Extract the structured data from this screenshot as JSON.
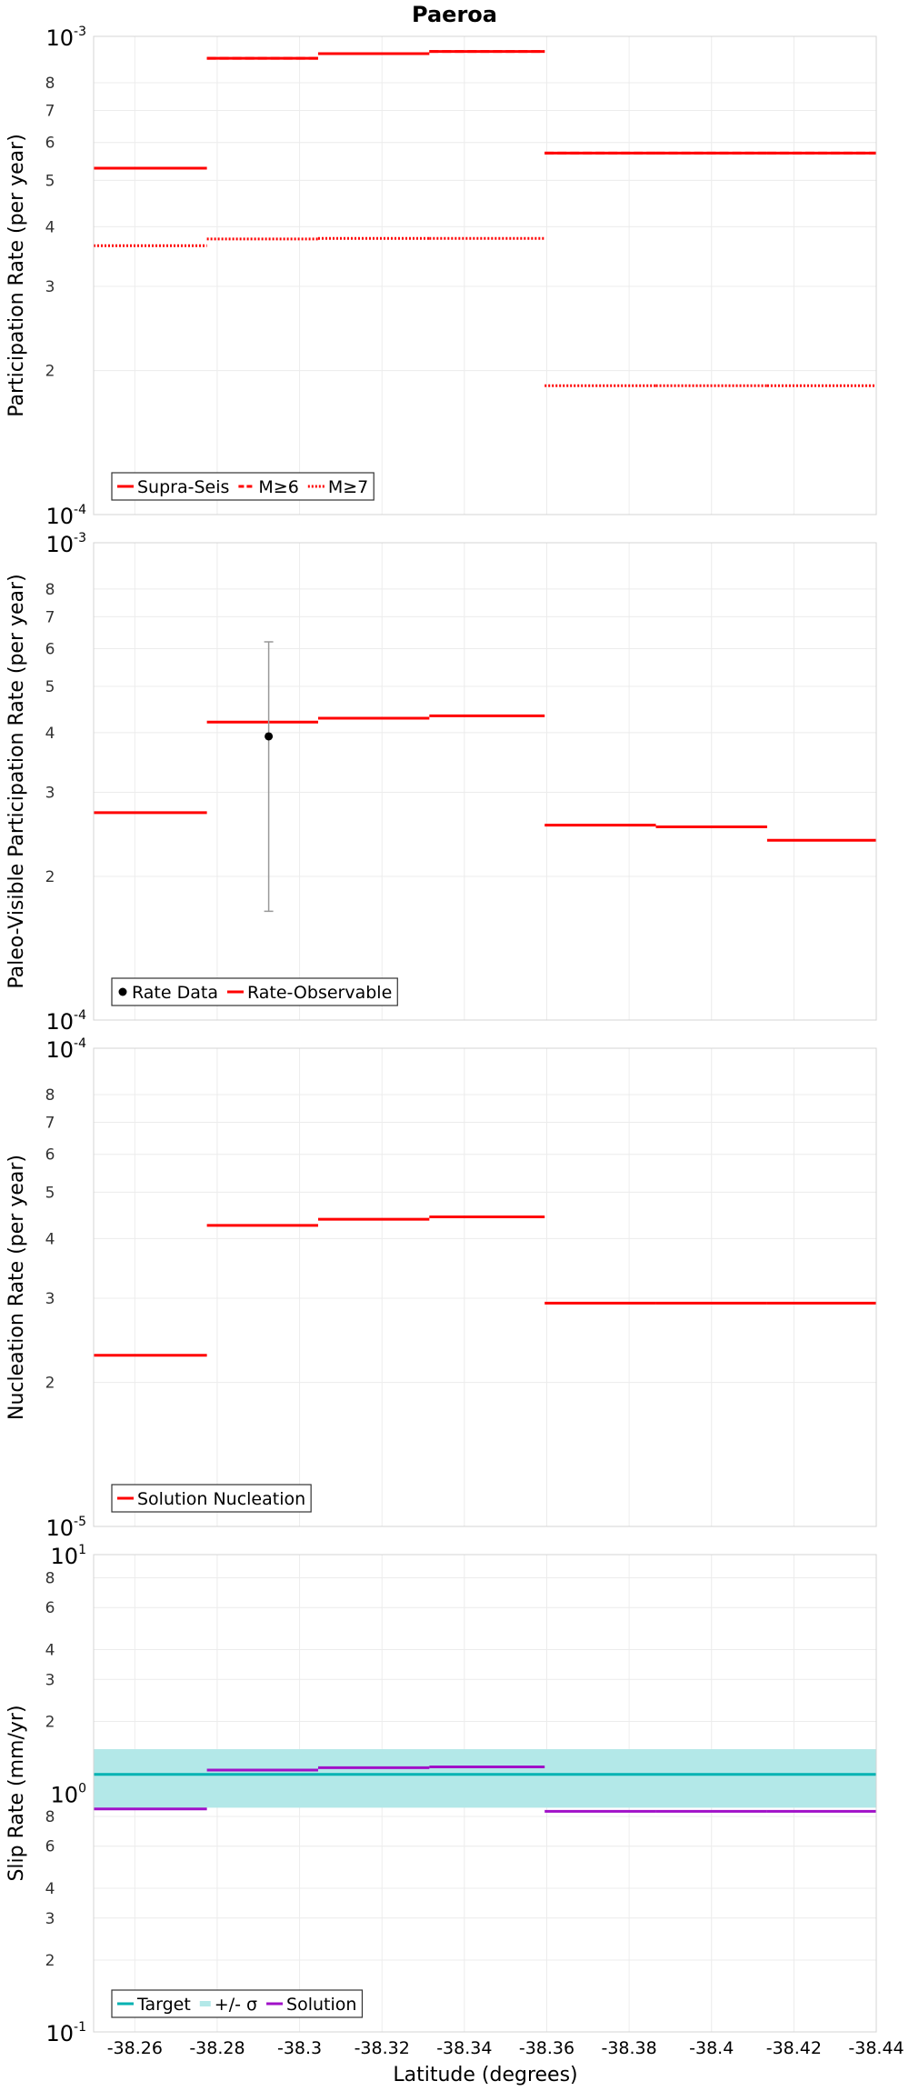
{
  "chart_data": {
    "title": "Paeroa",
    "xlabel": "Latitude (degrees)",
    "x_ticks": [
      -38.26,
      -38.28,
      -38.3,
      -38.32,
      -38.34,
      -38.36,
      -38.38,
      -38.4,
      -38.42,
      -38.44
    ],
    "x_tick_labels": [
      "-38.26",
      "-38.28",
      "-38.3",
      "-38.32",
      "-38.34",
      "-38.36",
      "-38.38",
      "-38.4",
      "-38.42",
      "-38.44"
    ],
    "xlim": [
      -38.25,
      -38.44
    ],
    "panels": [
      {
        "type": "line",
        "ylabel": "Participation Rate (per year)",
        "yscale": "log",
        "ylim": [
          0.0001,
          0.001
        ],
        "minor_tick_labels": [
          "2",
          "3",
          "4",
          "5",
          "6",
          "7",
          "8"
        ],
        "legend_position": "bottom-left",
        "series": [
          {
            "name": "Supra-Seis",
            "color": "#ff0000",
            "style": "solid",
            "segments": [
              [
                -38.25,
                -38.2775,
                0.00053
              ],
              [
                -38.2775,
                -38.3045,
                0.0009
              ],
              [
                -38.3045,
                -38.3315,
                0.00092
              ],
              [
                -38.3315,
                -38.3595,
                0.00093
              ],
              [
                -38.3595,
                -38.3865,
                0.00057
              ],
              [
                -38.3865,
                -38.4135,
                0.00057
              ],
              [
                -38.4135,
                -38.44,
                0.00057
              ]
            ]
          },
          {
            "name": "M≥6",
            "color": "#ff0000",
            "style": "dashed",
            "segments": [
              [
                -38.25,
                -38.2775,
                0.00053
              ],
              [
                -38.2775,
                -38.3045,
                0.0009
              ],
              [
                -38.3045,
                -38.3315,
                0.00092
              ],
              [
                -38.3315,
                -38.3595,
                0.00093
              ],
              [
                -38.3595,
                -38.3865,
                0.00057
              ],
              [
                -38.3865,
                -38.4135,
                0.00057
              ],
              [
                -38.4135,
                -38.44,
                0.00057
              ]
            ]
          },
          {
            "name": "M≥7",
            "color": "#ff0000",
            "style": "dotted",
            "segments": [
              [
                -38.25,
                -38.2775,
                0.000365
              ],
              [
                -38.2775,
                -38.3045,
                0.000377
              ],
              [
                -38.3045,
                -38.3315,
                0.000378
              ],
              [
                -38.3315,
                -38.3595,
                0.000378
              ],
              [
                -38.3595,
                -38.3865,
                0.000186
              ],
              [
                -38.3865,
                -38.4135,
                0.000186
              ],
              [
                -38.4135,
                -38.44,
                0.000186
              ]
            ]
          }
        ]
      },
      {
        "type": "line",
        "ylabel": "Paleo-Visible Participation Rate (per year)",
        "yscale": "log",
        "ylim": [
          0.0001,
          0.001
        ],
        "minor_tick_labels": [
          "2",
          "3",
          "4",
          "5",
          "6",
          "7",
          "8"
        ],
        "legend_position": "bottom-left",
        "points": [
          {
            "name": "Rate Data",
            "color": "#000000",
            "x": -38.2925,
            "y": 0.000393,
            "ylow": 0.000169,
            "yhigh": 0.00062
          }
        ],
        "series": [
          {
            "name": "Rate-Observable",
            "color": "#ff0000",
            "style": "solid",
            "segments": [
              [
                -38.25,
                -38.2775,
                0.000272
              ],
              [
                -38.2775,
                -38.3045,
                0.000421
              ],
              [
                -38.3045,
                -38.3315,
                0.000429
              ],
              [
                -38.3315,
                -38.3595,
                0.000434
              ],
              [
                -38.3595,
                -38.3865,
                0.000256
              ],
              [
                -38.3865,
                -38.4135,
                0.000254
              ],
              [
                -38.4135,
                -38.44,
                0.000238
              ]
            ]
          }
        ]
      },
      {
        "type": "line",
        "ylabel": "Nucleation Rate (per year)",
        "yscale": "log",
        "ylim": [
          1e-05,
          0.0001
        ],
        "minor_tick_labels": [
          "2",
          "3",
          "4",
          "5",
          "6",
          "7",
          "8"
        ],
        "legend_position": "bottom-left",
        "series": [
          {
            "name": "Solution Nucleation",
            "color": "#ff0000",
            "style": "solid",
            "segments": [
              [
                -38.25,
                -38.2775,
                2.28e-05
              ],
              [
                -38.2775,
                -38.3045,
                4.26e-05
              ],
              [
                -38.3045,
                -38.3315,
                4.39e-05
              ],
              [
                -38.3315,
                -38.3595,
                4.44e-05
              ],
              [
                -38.3595,
                -38.3865,
                2.93e-05
              ],
              [
                -38.3865,
                -38.4135,
                2.93e-05
              ],
              [
                -38.4135,
                -38.44,
                2.93e-05
              ]
            ]
          }
        ]
      },
      {
        "type": "line",
        "ylabel": "Slip Rate (mm/yr)",
        "yscale": "log",
        "ylim": [
          0.1,
          10
        ],
        "minor_tick_labels": [
          "2",
          "3",
          "4",
          "6",
          "8",
          "2",
          "3",
          "4",
          "6",
          "8"
        ],
        "legend_position": "bottom-left",
        "band": {
          "name": "+/- σ",
          "color": "#b3e8e8",
          "low": 0.87,
          "high": 1.53
        },
        "series": [
          {
            "name": "Target",
            "color": "#00b2b2",
            "style": "solid",
            "segments": [
              [
                -38.25,
                -38.44,
                1.2
              ]
            ]
          },
          {
            "name": "Solution",
            "color": "#a010c8",
            "style": "solid",
            "segments": [
              [
                -38.25,
                -38.2775,
                0.86
              ],
              [
                -38.2775,
                -38.3045,
                1.25
              ],
              [
                -38.3045,
                -38.3315,
                1.28
              ],
              [
                -38.3315,
                -38.3595,
                1.29
              ],
              [
                -38.3595,
                -38.3865,
                0.84
              ],
              [
                -38.3865,
                -38.4135,
                0.84
              ],
              [
                -38.4135,
                -38.44,
                0.84
              ]
            ]
          }
        ]
      }
    ]
  }
}
